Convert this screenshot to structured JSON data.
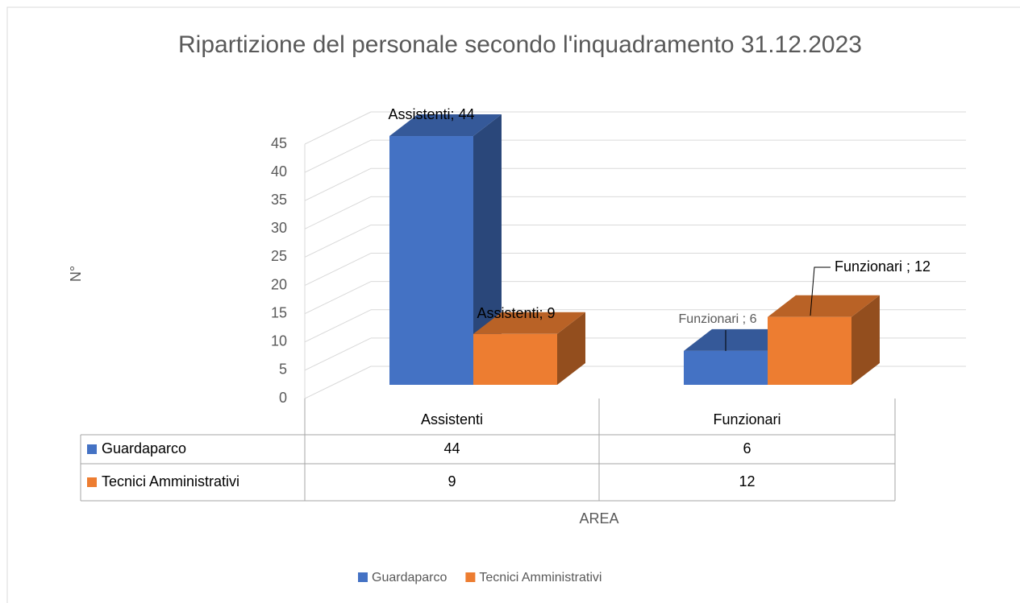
{
  "chart_data": {
    "type": "bar3d",
    "title": "Ripartizione del personale secondo l'inquadramento 31.12.2023",
    "y_label": "N°",
    "x_label": "AREA",
    "categories": [
      "Assistenti",
      "Funzionari"
    ],
    "series": [
      {
        "name": "Guardaparco",
        "color": "#4472c4",
        "values": [
          44,
          6
        ],
        "value_labels": [
          "Assistenti; 44",
          "Funzionari ; 6"
        ]
      },
      {
        "name": "Tecnici Amministrativi",
        "color": "#ed7d31",
        "values": [
          9,
          12
        ],
        "value_labels": [
          "Assistenti; 9",
          "Funzionari ; 12"
        ]
      }
    ],
    "ylim": [
      0,
      45
    ],
    "yticks": [
      0,
      5,
      10,
      15,
      20,
      25,
      30,
      35,
      40,
      45
    ],
    "grid": true,
    "legend": "bottom",
    "data_table": true
  }
}
